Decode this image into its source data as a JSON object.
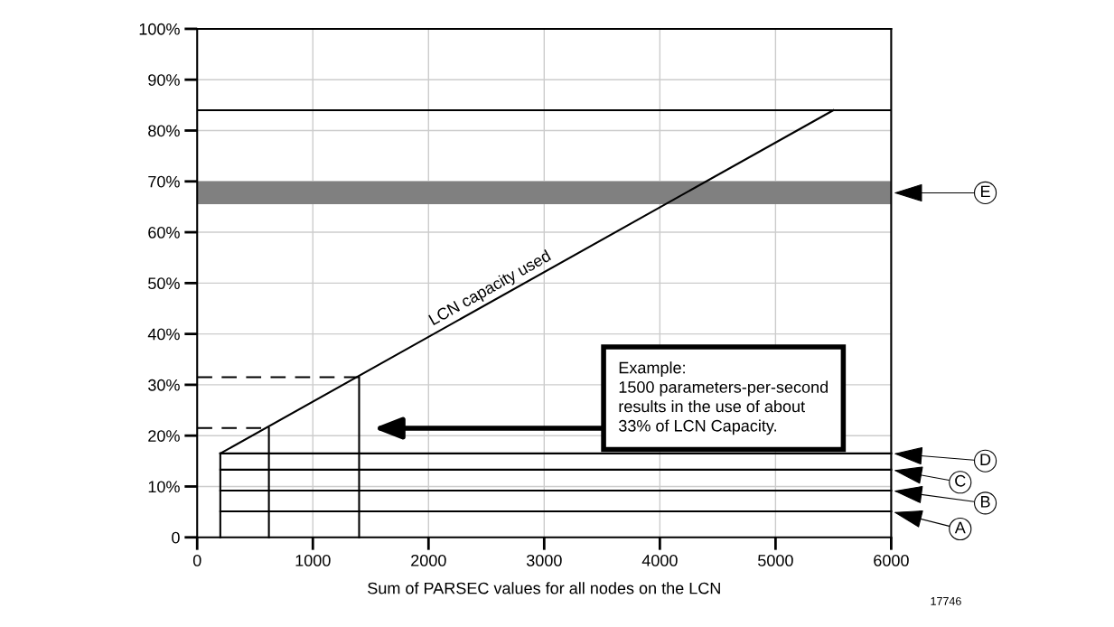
{
  "chart_data": {
    "type": "line",
    "xlabel": "Sum of PARSEC values for all nodes on the LCN",
    "xlim": [
      0,
      6000
    ],
    "ylim": [
      0,
      100
    ],
    "xticks": [
      0,
      1000,
      2000,
      3000,
      4000,
      5000,
      6000
    ],
    "yticks": [
      {
        "value": 0,
        "label": "0"
      },
      {
        "value": 10,
        "label": "10%"
      },
      {
        "value": 20,
        "label": "20%"
      },
      {
        "value": 30,
        "label": "30%"
      },
      {
        "value": 40,
        "label": "40%"
      },
      {
        "value": 50,
        "label": "50%"
      },
      {
        "value": 60,
        "label": "60%"
      },
      {
        "value": 70,
        "label": "70%"
      },
      {
        "value": 80,
        "label": "80%"
      },
      {
        "value": 90,
        "label": "90%"
      },
      {
        "value": 100,
        "label": "100%"
      }
    ],
    "grid": true,
    "legend": "right",
    "series": [
      {
        "color": "#000000",
        "x": [
          200,
          5500
        ],
        "values": [
          16.5,
          84
        ]
      },
      {
        "name": "D",
        "color": "#000000",
        "x": [
          200,
          6000
        ],
        "values": [
          16.5,
          16.5
        ]
      },
      {
        "name": "C",
        "color": "#000000",
        "x": [
          200,
          6000
        ],
        "values": [
          13.3,
          13.3
        ]
      },
      {
        "name": "B",
        "color": "#000000",
        "x": [
          200,
          6000
        ],
        "values": [
          9.2,
          9.2
        ]
      },
      {
        "name": "A",
        "color": "#000000",
        "x": [
          200,
          6000
        ],
        "values": [
          5.1,
          5.1
        ]
      },
      {
        "color": "#000000",
        "x": [
          200,
          200
        ],
        "values": [
          0,
          16.5
        ]
      },
      {
        "color": "#000000",
        "x": [
          0,
          620
        ],
        "values": [
          21.5,
          21.5
        ],
        "line_style": "dashed"
      },
      {
        "color": "#000000",
        "x": [
          620,
          620
        ],
        "values": [
          21.5,
          0
        ]
      },
      {
        "color": "#000000",
        "x": [
          0,
          1400
        ],
        "values": [
          31.5,
          31.5
        ],
        "line_style": "dashed"
      },
      {
        "color": "#000000",
        "x": [
          1400,
          1400
        ],
        "values": [
          31.5,
          0
        ]
      }
    ],
    "ref_lines": [
      {
        "axis": "y",
        "value": 84,
        "color": "#000000"
      }
    ],
    "bands": [
      {
        "axis": "y",
        "from": 65.5,
        "to": 70,
        "label": "E",
        "color": "#808080"
      }
    ],
    "annotations": [
      {
        "text": "LCN capacity used",
        "x": 2050,
        "y": 40
      },
      "Example:\n1500 parameters-per-second\nresults in the use of about\n33% of LCN Capacity.",
      "17746"
    ]
  }
}
